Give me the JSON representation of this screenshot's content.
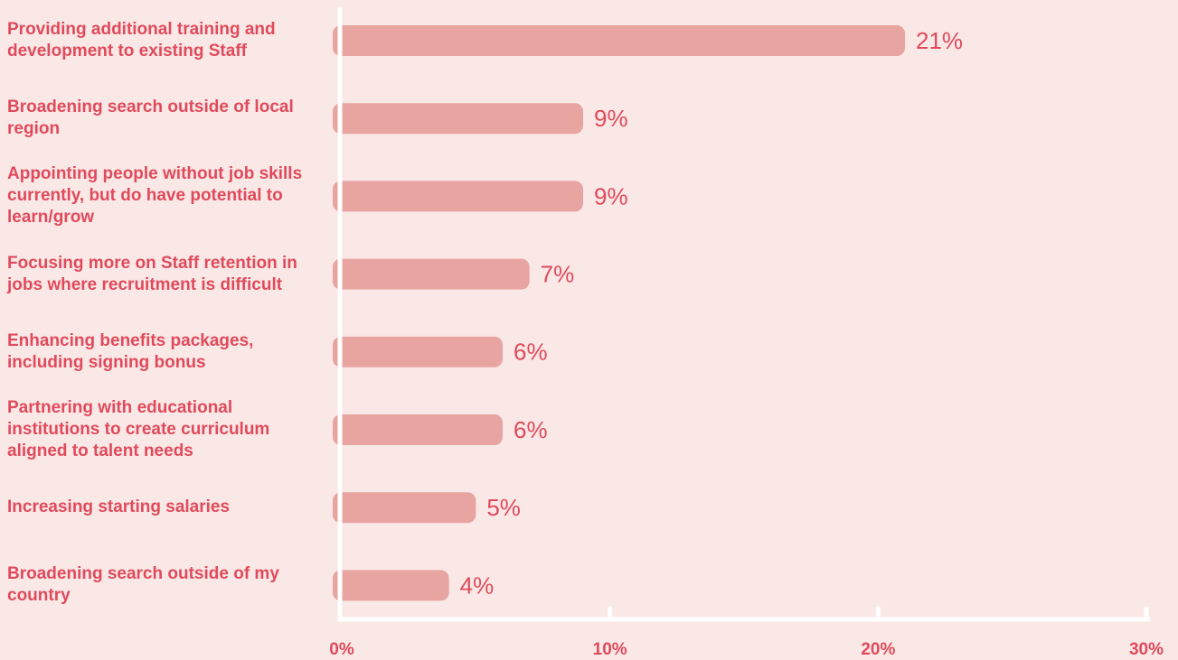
{
  "chart_data": {
    "type": "barh",
    "categories": [
      "Providing additional training and development to existing Staff",
      "Broadening search outside of local region",
      "Appointing people without job skills currently, but do have potential to learn/grow",
      "Focusing more on Staff retention in jobs where recruitment is difficult",
      "Enhancing benefits packages, including signing bonus",
      "Partnering with educational institutions to create curriculum aligned to talent needs",
      "Increasing starting salaries",
      "Broadening search outside of my country"
    ],
    "values": [
      21,
      9,
      9,
      7,
      6,
      6,
      5,
      4
    ],
    "value_labels": [
      "21%",
      "9%",
      "9%",
      "7%",
      "6%",
      "6%",
      "5%",
      "4%"
    ],
    "color": "#e8a4a0",
    "xlim": [
      0,
      30
    ],
    "xticks": [
      {
        "value": 0,
        "label": "0%"
      },
      {
        "value": 10,
        "label": "10%"
      },
      {
        "value": 20,
        "label": "20%"
      },
      {
        "value": 30,
        "label": "30%"
      }
    ]
  }
}
